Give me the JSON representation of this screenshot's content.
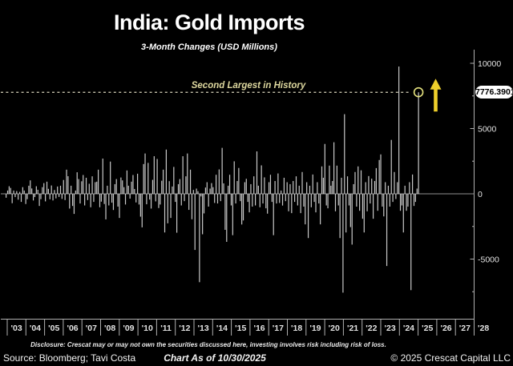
{
  "page": {
    "title": "India: Gold Imports",
    "subtitle": "3-Month Changes (USD Millions)"
  },
  "annotation": {
    "label": "Second Largest in History",
    "current_value_label": "7776.3901"
  },
  "footer": {
    "disclosure": "Disclosure: Crescat may or may not own the securities discussed here, investing involves risk including risk of loss.",
    "source": "Source: Bloomberg; Tavi Costa",
    "chart_as_of": "Chart As of 10/30/2025",
    "copyright": "© 2025 Crescat Capital LLC"
  },
  "colors": {
    "background": "#000000",
    "bar": "#c9c9c9",
    "axis": "#b0b0b0",
    "zero_line": "#909090",
    "tick_label": "#e3e3e3",
    "dashed_line": "#d8d3bc",
    "annotation_text": "#ddd79e",
    "circle": "#e5e27e",
    "arrow": "#eecf2b",
    "label_pill_bg": "#ffffff",
    "label_pill_text": "#000000"
  },
  "chart_data": {
    "type": "bar",
    "title": "India: Gold Imports",
    "subtitle": "3-Month Changes (USD Millions)",
    "x_start": "2003-01",
    "x_end": "2025-10",
    "x_frequency": "monthly",
    "ylabel": "USD Millions (3-month change)",
    "ylim": [
      -9500,
      11000
    ],
    "y_ticks": [
      10000,
      5000,
      0,
      -5000
    ],
    "y_minor_ticks": [
      7500,
      2500,
      -2500,
      -7500
    ],
    "x_tick_labels": [
      "'03",
      "'04",
      "'05",
      "'06",
      "'07",
      "'08",
      "'09",
      "'10",
      "'11",
      "'12",
      "'13",
      "'14",
      "'15",
      "'16",
      "'17",
      "'18",
      "'19",
      "'20",
      "'21",
      "'22",
      "'23",
      "'24",
      "'25",
      "'26",
      "'27",
      "'28"
    ],
    "grid": false,
    "legend": null,
    "dashed_line_value": 7776.3901,
    "last_value": 7776.3901,
    "max_value": 9750,
    "annotation": "Second Largest in History",
    "values": [
      -300,
      250,
      580,
      450,
      -720,
      250,
      -250,
      210,
      -450,
      150,
      -620,
      510,
      250,
      -780,
      -410,
      620,
      1030,
      410,
      -510,
      -250,
      580,
      310,
      -930,
      -410,
      510,
      820,
      -580,
      930,
      380,
      -420,
      640,
      -510,
      290,
      -350,
      560,
      -240,
      620,
      -390,
      1060,
      -480,
      1850,
      1350,
      -1130,
      620,
      -930,
      -1540,
      250,
      1650,
      1130,
      -740,
      960,
      1440,
      -890,
      1230,
      -480,
      770,
      -1030,
      1340,
      -620,
      890,
      930,
      1850,
      -1030,
      -600,
      2700,
      -780,
      -1960,
      620,
      -890,
      2470,
      -680,
      -1240,
      740,
      1130,
      -980,
      -1850,
      1250,
      1030,
      510,
      -820,
      1790,
      620,
      -370,
      930,
      1440,
      370,
      -660,
      1540,
      -820,
      -1750,
      -2570,
      2280,
      3090,
      -800,
      2370,
      -440,
      -1130,
      1070,
      2880,
      -580,
      2670,
      -1090,
      -820,
      1000,
      1850,
      -2960,
      3390,
      -2260,
      970,
      -1850,
      560,
      2060,
      -620,
      -2980,
      740,
      1130,
      -890,
      2880,
      -560,
      1340,
      3090,
      -1230,
      1850,
      -1950,
      300,
      -4300,
      400,
      200,
      -6770,
      -200,
      -3100,
      -1500,
      480,
      890,
      -980,
      400,
      820,
      510,
      -700,
      1460,
      -740,
      1870,
      -560,
      3520,
      800,
      -2760,
      -3680,
      620,
      1460,
      -890,
      -3170,
      2490,
      -740,
      980,
      1980,
      -560,
      -2350,
      -2040,
      890,
      1150,
      -620,
      -1420,
      740,
      -980,
      1340,
      -890,
      3250,
      620,
      -1030,
      2180,
      -740,
      1260,
      -1110,
      -1520,
      890,
      1460,
      -620,
      -3170,
      980,
      -740,
      1560,
      -700,
      250,
      -900,
      1230,
      -560,
      890,
      -1340,
      740,
      -1480,
      980,
      -620,
      1340,
      -890,
      620,
      -1480,
      1670,
      -980,
      -2340,
      890,
      -3390,
      620,
      -1030,
      1480,
      -620,
      -1420,
      890,
      -740,
      -2340,
      2100,
      1230,
      3820,
      -890,
      -1110,
      2160,
      620,
      980,
      3950,
      -1340,
      2160,
      -890,
      -3390,
      1230,
      -7570,
      6100,
      -2960,
      1340,
      -890,
      -2550,
      -3890,
      740,
      1670,
      -980,
      2100,
      -1300,
      1800,
      -1910,
      -2960,
      890,
      -1340,
      1360,
      -740,
      1160,
      -1910,
      980,
      1970,
      -1300,
      2590,
      3020,
      -980,
      -1730,
      890,
      -5530,
      620,
      -980,
      4130,
      -620,
      1670,
      -400,
      890,
      9750,
      -1300,
      -890,
      -2960,
      620,
      -1300,
      -980,
      890,
      -7380,
      1480,
      -930,
      -620,
      400,
      7776.3901
    ]
  }
}
